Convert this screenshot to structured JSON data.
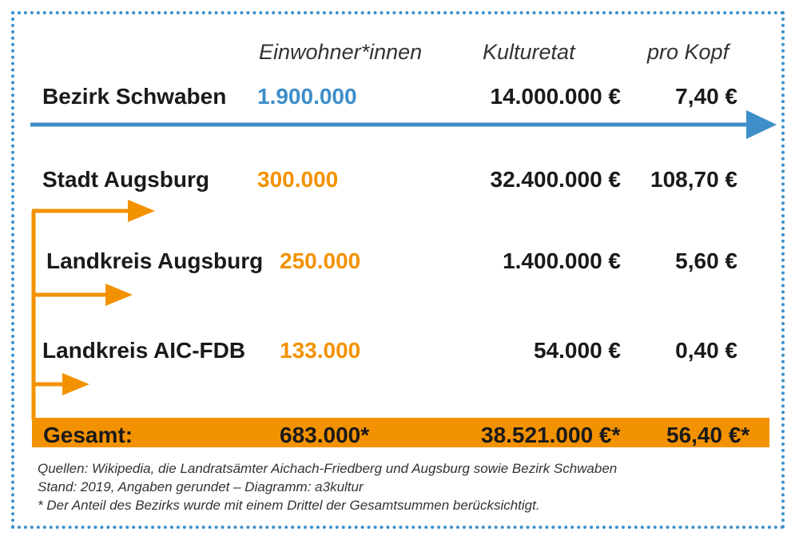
{
  "colors": {
    "blue": "#3d8ec9",
    "orange": "#f39200",
    "text": "#1a1a1a"
  },
  "chart_data": {
    "type": "table",
    "columns": [
      "",
      "Einwohner*innen",
      "Kulturetat",
      "pro Kopf"
    ],
    "rows": [
      {
        "name": "Bezirk Schwaben",
        "einwohner": "1.900.000",
        "kulturetat": "14.000.000 €",
        "pro_kopf": "7,40 €",
        "einwohner_value": 1900000,
        "kulturetat_value": 14000000,
        "pro_kopf_value": 7.4
      },
      {
        "name": "Stadt Augsburg",
        "einwohner": "300.000",
        "kulturetat": "32.400.000 €",
        "pro_kopf": "108,70 €",
        "einwohner_value": 300000,
        "kulturetat_value": 32400000,
        "pro_kopf_value": 108.7
      },
      {
        "name": "Landkreis Augsburg",
        "einwohner": "250.000",
        "kulturetat": "1.400.000 €",
        "pro_kopf": "5,60 €",
        "einwohner_value": 250000,
        "kulturetat_value": 1400000,
        "pro_kopf_value": 5.6
      },
      {
        "name": "Landkreis AIC-FDB",
        "einwohner": "133.000",
        "kulturetat": "54.000 €",
        "pro_kopf": "0,40 €",
        "einwohner_value": 133000,
        "kulturetat_value": 54000,
        "pro_kopf_value": 0.4
      }
    ],
    "total": {
      "name": "Gesamt:",
      "einwohner": "683.000*",
      "kulturetat": "38.521.000 €*",
      "pro_kopf": "56,40 €*",
      "einwohner_value": 683000,
      "kulturetat_value": 38521000,
      "pro_kopf_value": 56.4
    }
  },
  "notes": [
    "Quellen: Wikipedia, die Landratsämter Aichach-Friedberg und Augsburg sowie Bezirk Schwaben",
    "Stand: 2019, Angaben gerundet – Diagramm: a3kultur",
    "* Der Anteil des Bezirks wurde mit einem Drittel der Gesamtsummen berücksichtigt."
  ]
}
